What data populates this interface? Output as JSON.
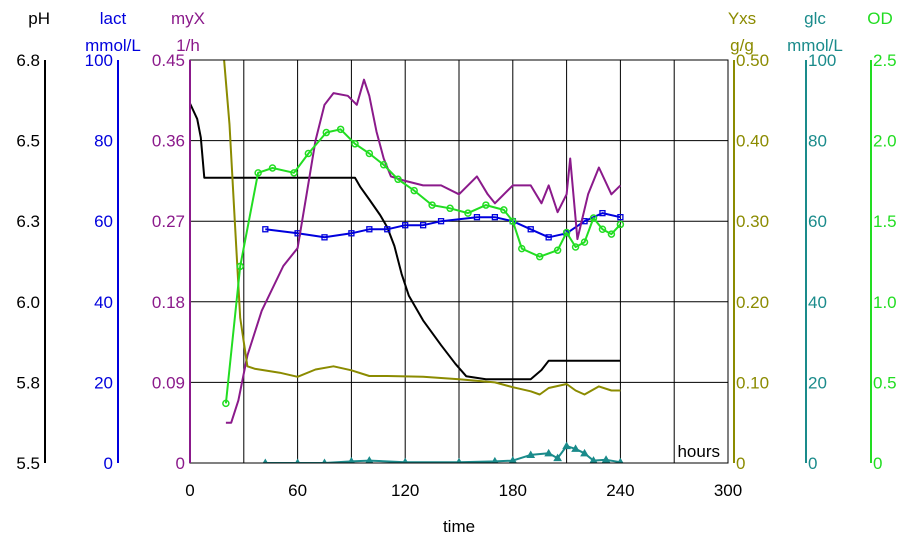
{
  "chart_data": {
    "type": "line",
    "xlabel": "time",
    "x_unit_label": "hours",
    "xlim": [
      0,
      300
    ],
    "x_ticks": [
      "0",
      "60",
      "120",
      "180",
      "240",
      "300"
    ],
    "grid": true,
    "axes": [
      {
        "key": "ph",
        "name": "pH",
        "unit": "",
        "color": "#000000",
        "side": "left",
        "ticks": [
          "5.5",
          "5.8",
          "6.0",
          "6.3",
          "6.5",
          "6.8"
        ],
        "range": [
          5.5,
          6.8
        ]
      },
      {
        "key": "lact",
        "name": "lact",
        "unit": "mmol/L",
        "color": "#0000dd",
        "side": "left",
        "ticks": [
          "0",
          "20",
          "40",
          "60",
          "80",
          "100"
        ],
        "range": [
          0,
          100
        ]
      },
      {
        "key": "myx",
        "name": "myX",
        "unit": "1/h",
        "color": "#8b1a8b",
        "side": "left",
        "ticks": [
          "0",
          "0.09",
          "0.18",
          "0.27",
          "0.36",
          "0.45"
        ],
        "range": [
          0,
          0.45
        ]
      },
      {
        "key": "yxs",
        "name": "Yxs",
        "unit": "g/g",
        "color": "#8b8b00",
        "side": "right",
        "ticks": [
          "0",
          "0.10",
          "0.20",
          "0.30",
          "0.40",
          "0.50"
        ],
        "range": [
          0,
          0.5
        ]
      },
      {
        "key": "glc",
        "name": "glc",
        "unit": "mmol/L",
        "color": "#1a8b8b",
        "side": "right",
        "ticks": [
          "0",
          "20",
          "40",
          "60",
          "80",
          "100"
        ],
        "range": [
          0,
          100
        ]
      },
      {
        "key": "od",
        "name": "OD",
        "unit": "",
        "color": "#22dd22",
        "side": "right",
        "ticks": [
          "0",
          "0.5",
          "1.0",
          "1.5",
          "2.0",
          "2.5"
        ],
        "range": [
          0,
          2.5
        ]
      }
    ],
    "series": [
      {
        "name": "pH",
        "axis": "ph",
        "color": "#000000",
        "points": [
          [
            0,
            6.66
          ],
          [
            4,
            6.61
          ],
          [
            6,
            6.55
          ],
          [
            8,
            6.42
          ],
          [
            20,
            6.42
          ],
          [
            40,
            6.42
          ],
          [
            60,
            6.42
          ],
          [
            80,
            6.42
          ],
          [
            92,
            6.42
          ],
          [
            95,
            6.39
          ],
          [
            100,
            6.35
          ],
          [
            106,
            6.3
          ],
          [
            110,
            6.26
          ],
          [
            114,
            6.2
          ],
          [
            118,
            6.11
          ],
          [
            122,
            6.04
          ],
          [
            130,
            5.96
          ],
          [
            140,
            5.88
          ],
          [
            148,
            5.82
          ],
          [
            154,
            5.78
          ],
          [
            165,
            5.77
          ],
          [
            180,
            5.77
          ],
          [
            190,
            5.77
          ],
          [
            196,
            5.8
          ],
          [
            200,
            5.83
          ],
          [
            215,
            5.83
          ],
          [
            230,
            5.83
          ],
          [
            240,
            5.83
          ]
        ]
      },
      {
        "name": "lact",
        "axis": "lact",
        "color": "#0000dd",
        "marker": "square",
        "points": [
          [
            42,
            58
          ],
          [
            60,
            57
          ],
          [
            75,
            56
          ],
          [
            90,
            57
          ],
          [
            100,
            58
          ],
          [
            110,
            58
          ],
          [
            120,
            59
          ],
          [
            130,
            59
          ],
          [
            140,
            60
          ],
          [
            160,
            61
          ],
          [
            170,
            61
          ],
          [
            180,
            60
          ],
          [
            190,
            58
          ],
          [
            200,
            56
          ],
          [
            210,
            57
          ],
          [
            220,
            60
          ],
          [
            230,
            62
          ],
          [
            240,
            61
          ]
        ]
      },
      {
        "name": "myX",
        "axis": "myx",
        "color": "#8b1a8b",
        "points": [
          [
            20,
            0.045
          ],
          [
            23,
            0.045
          ],
          [
            27,
            0.07
          ],
          [
            32,
            0.12
          ],
          [
            40,
            0.17
          ],
          [
            52,
            0.22
          ],
          [
            60,
            0.24
          ],
          [
            65,
            0.3
          ],
          [
            70,
            0.36
          ],
          [
            75,
            0.4
          ],
          [
            80,
            0.413
          ],
          [
            88,
            0.41
          ],
          [
            93,
            0.4
          ],
          [
            97,
            0.428
          ],
          [
            100,
            0.41
          ],
          [
            104,
            0.37
          ],
          [
            108,
            0.34
          ],
          [
            112,
            0.32
          ],
          [
            120,
            0.315
          ],
          [
            130,
            0.31
          ],
          [
            140,
            0.31
          ],
          [
            150,
            0.3
          ],
          [
            160,
            0.32
          ],
          [
            166,
            0.3
          ],
          [
            170,
            0.29
          ],
          [
            180,
            0.31
          ],
          [
            190,
            0.31
          ],
          [
            196,
            0.29
          ],
          [
            200,
            0.31
          ],
          [
            205,
            0.28
          ],
          [
            210,
            0.3
          ],
          [
            212,
            0.34
          ],
          [
            216,
            0.25
          ],
          [
            222,
            0.3
          ],
          [
            228,
            0.33
          ],
          [
            235,
            0.3
          ],
          [
            240,
            0.31
          ]
        ]
      },
      {
        "name": "Yxs",
        "axis": "yxs",
        "color": "#8b8b00",
        "points": [
          [
            19,
            0.5
          ],
          [
            22,
            0.42
          ],
          [
            25,
            0.3
          ],
          [
            28,
            0.18
          ],
          [
            32,
            0.12
          ],
          [
            36,
            0.117
          ],
          [
            50,
            0.112
          ],
          [
            60,
            0.107
          ],
          [
            70,
            0.116
          ],
          [
            80,
            0.12
          ],
          [
            90,
            0.115
          ],
          [
            100,
            0.108
          ],
          [
            110,
            0.108
          ],
          [
            130,
            0.107
          ],
          [
            150,
            0.104
          ],
          [
            170,
            0.1
          ],
          [
            180,
            0.094
          ],
          [
            190,
            0.089
          ],
          [
            195,
            0.085
          ],
          [
            200,
            0.093
          ],
          [
            210,
            0.098
          ],
          [
            215,
            0.09
          ],
          [
            220,
            0.085
          ],
          [
            228,
            0.095
          ],
          [
            235,
            0.09
          ],
          [
            240,
            0.09
          ]
        ]
      },
      {
        "name": "glc",
        "axis": "glc",
        "color": "#1a8b8b",
        "marker": "triangle",
        "points": [
          [
            42,
            0
          ],
          [
            60,
            0
          ],
          [
            75,
            0
          ],
          [
            90,
            0.4
          ],
          [
            100,
            0.6
          ],
          [
            120,
            0.2
          ],
          [
            150,
            0.2
          ],
          [
            170,
            0.4
          ],
          [
            180,
            0.6
          ],
          [
            190,
            2
          ],
          [
            200,
            2.4
          ],
          [
            205,
            1.2
          ],
          [
            210,
            4.2
          ],
          [
            215,
            3.5
          ],
          [
            220,
            2.4
          ],
          [
            225,
            0.6
          ],
          [
            232,
            0.8
          ],
          [
            240,
            0.2
          ]
        ]
      },
      {
        "name": "OD",
        "axis": "od",
        "color": "#22dd22",
        "marker": "circle",
        "points": [
          [
            20,
            0.37
          ],
          [
            28,
            1.22
          ],
          [
            38,
            1.8
          ],
          [
            46,
            1.83
          ],
          [
            58,
            1.8
          ],
          [
            66,
            1.92
          ],
          [
            76,
            2.05
          ],
          [
            84,
            2.07
          ],
          [
            92,
            1.98
          ],
          [
            100,
            1.92
          ],
          [
            108,
            1.85
          ],
          [
            116,
            1.76
          ],
          [
            125,
            1.69
          ],
          [
            135,
            1.6
          ],
          [
            145,
            1.58
          ],
          [
            155,
            1.55
          ],
          [
            165,
            1.6
          ],
          [
            175,
            1.57
          ],
          [
            180,
            1.5
          ],
          [
            185,
            1.33
          ],
          [
            195,
            1.28
          ],
          [
            205,
            1.32
          ],
          [
            210,
            1.43
          ],
          [
            215,
            1.34
          ],
          [
            220,
            1.37
          ],
          [
            225,
            1.52
          ],
          [
            230,
            1.45
          ],
          [
            235,
            1.42
          ],
          [
            240,
            1.48
          ]
        ]
      }
    ]
  }
}
